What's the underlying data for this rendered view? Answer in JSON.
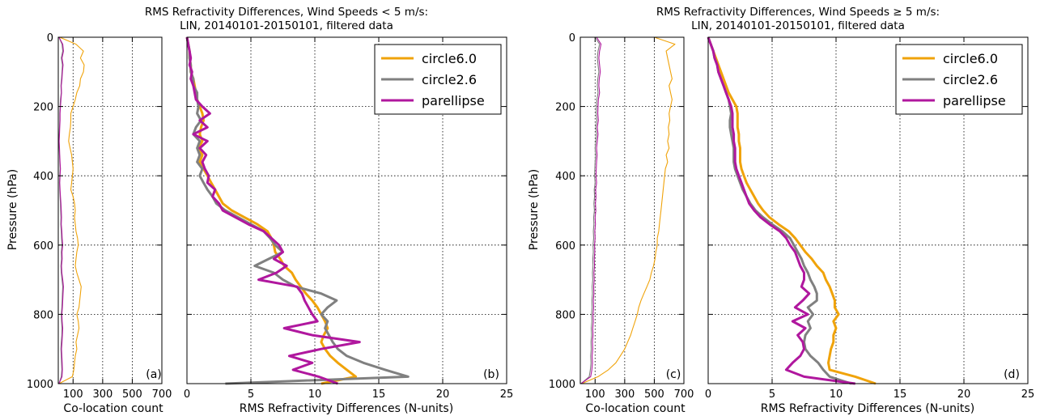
{
  "titles": [
    {
      "line1": "RMS Refractivity Differences, Wind Speeds < 5 m/s:",
      "line2": "LIN, 20140101-20150101, filtered data"
    },
    {
      "line1": "RMS Refractivity Differences, Wind Speeds ≥ 5 m/s:",
      "line2": "LIN, 20140101-20150101, filtered data"
    }
  ],
  "axis_labels": {
    "pressure": "Pressure (hPa)",
    "count": "Co-location count",
    "rms": "RMS Refractivity Differences (N-units)"
  },
  "panel_labels": [
    "(a)",
    "(b)",
    "(c)",
    "(d)"
  ],
  "colors": {
    "circle6.0": "#f0a30a",
    "circle2.6": "#808080",
    "parellipse": "#b0179e"
  },
  "chart_data": [
    {
      "id": "a",
      "type": "line",
      "xlabel": "Co-location count",
      "ylabel": "Pressure (hPa)",
      "xlim": [
        0,
        700
      ],
      "ylim": [
        1000,
        0
      ],
      "xticks": [
        100,
        300,
        500,
        700
      ],
      "yticks": [
        0,
        200,
        400,
        600,
        800,
        1000
      ],
      "y": [
        0,
        20,
        40,
        60,
        80,
        100,
        120,
        140,
        160,
        180,
        200,
        220,
        240,
        260,
        280,
        300,
        320,
        340,
        360,
        380,
        400,
        420,
        440,
        460,
        480,
        500,
        520,
        540,
        560,
        580,
        600,
        620,
        640,
        660,
        680,
        700,
        720,
        740,
        760,
        780,
        800,
        820,
        840,
        860,
        880,
        900,
        920,
        940,
        960,
        980,
        1000
      ],
      "series": [
        {
          "name": "circle6.0",
          "values": [
            10,
            120,
            170,
            150,
            175,
            170,
            150,
            145,
            125,
            115,
            100,
            85,
            85,
            82,
            75,
            70,
            80,
            90,
            95,
            100,
            95,
            90,
            85,
            100,
            110,
            115,
            110,
            115,
            120,
            130,
            135,
            125,
            120,
            115,
            125,
            140,
            155,
            150,
            145,
            140,
            125,
            135,
            140,
            130,
            120,
            125,
            115,
            110,
            105,
            95,
            5
          ]
        },
        {
          "name": "circle2.6",
          "values": [
            5,
            25,
            30,
            20,
            28,
            25,
            22,
            18,
            20,
            15,
            12,
            10,
            10,
            8,
            6,
            5,
            6,
            8,
            10,
            12,
            10,
            8,
            10,
            12,
            15,
            16,
            18,
            17,
            20,
            22,
            25,
            20,
            22,
            18,
            20,
            25,
            30,
            28,
            26,
            24,
            20,
            22,
            25,
            24,
            20,
            18,
            20,
            22,
            24,
            20,
            5
          ]
        },
        {
          "name": "parellipse",
          "values": [
            5,
            30,
            35,
            25,
            32,
            28,
            25,
            20,
            22,
            18,
            15,
            12,
            12,
            10,
            8,
            6,
            8,
            10,
            12,
            15,
            12,
            10,
            12,
            15,
            18,
            20,
            22,
            20,
            24,
            26,
            30,
            25,
            26,
            22,
            24,
            30,
            35,
            32,
            30,
            28,
            24,
            26,
            30,
            28,
            25,
            22,
            24,
            26,
            28,
            25,
            5
          ]
        }
      ]
    },
    {
      "id": "b",
      "type": "line",
      "xlabel": "RMS Refractivity Differences (N-units)",
      "xlim": [
        0,
        25
      ],
      "ylim": [
        1000,
        0
      ],
      "xticks": [
        0,
        5,
        10,
        15,
        20,
        25
      ],
      "yticks": [
        0,
        200,
        400,
        600,
        800,
        1000
      ],
      "legend": "top-right",
      "y": [
        0,
        20,
        40,
        60,
        80,
        100,
        120,
        140,
        160,
        180,
        200,
        220,
        240,
        260,
        280,
        300,
        320,
        340,
        360,
        380,
        400,
        420,
        440,
        460,
        480,
        500,
        520,
        540,
        560,
        580,
        600,
        620,
        640,
        660,
        680,
        700,
        720,
        740,
        760,
        780,
        800,
        820,
        840,
        860,
        880,
        900,
        920,
        940,
        960,
        980,
        1000
      ],
      "series": [
        {
          "name": "circle6.0",
          "values": [
            0,
            0.1,
            0.2,
            0.2,
            0.3,
            0.3,
            0.5,
            0.6,
            0.7,
            0.8,
            1.0,
            1.2,
            1.3,
            1.1,
            1.0,
            1.2,
            0.9,
            1.2,
            1.0,
            1.3,
            1.6,
            1.9,
            2.2,
            2.5,
            2.8,
            3.5,
            4.5,
            5.5,
            6.3,
            6.6,
            6.8,
            6.9,
            7.3,
            7.6,
            8.2,
            8.5,
            8.9,
            9.3,
            9.8,
            10.2,
            10.5,
            10.8,
            11.0,
            10.7,
            10.5,
            10.8,
            11.2,
            11.8,
            12.5,
            13.2,
            10.5
          ]
        },
        {
          "name": "circle2.6",
          "values": [
            0,
            0.1,
            0.2,
            0.2,
            0.3,
            0.3,
            0.5,
            0.5,
            0.8,
            0.8,
            0.9,
            0.8,
            1.1,
            0.7,
            0.5,
            1.0,
            0.8,
            1.0,
            0.8,
            1.2,
            1.0,
            1.3,
            1.6,
            2.0,
            2.3,
            3.0,
            4.0,
            5.0,
            6.0,
            6.5,
            6.9,
            7.5,
            6.4,
            5.3,
            6.8,
            7.5,
            8.5,
            10.5,
            11.7,
            11.0,
            10.5,
            11.0,
            10.8,
            11.1,
            11.4,
            11.8,
            12.5,
            13.8,
            15.5,
            17.3,
            3.0
          ]
        },
        {
          "name": "parellipse",
          "values": [
            0,
            0.1,
            0.2,
            0.3,
            0.2,
            0.4,
            0.3,
            0.5,
            0.6,
            0.7,
            1.2,
            1.8,
            1.0,
            1.6,
            0.5,
            1.6,
            1.0,
            1.5,
            1.2,
            1.4,
            1.7,
            1.6,
            2.2,
            2.0,
            2.5,
            2.8,
            3.8,
            4.8,
            6.0,
            6.6,
            7.2,
            7.5,
            6.8,
            7.8,
            7.0,
            5.6,
            8.6,
            9.0,
            9.2,
            9.5,
            9.8,
            10.2,
            7.6,
            9.8,
            13.5,
            10.5,
            8.0,
            9.8,
            8.3,
            10.3,
            11.8
          ]
        }
      ]
    },
    {
      "id": "c",
      "type": "line",
      "xlabel": "Co-location count",
      "ylabel": "Pressure (hPa)",
      "xlim": [
        0,
        700
      ],
      "ylim": [
        1000,
        0
      ],
      "xticks": [
        100,
        300,
        500,
        700
      ],
      "yticks": [
        0,
        200,
        400,
        600,
        800,
        1000
      ],
      "y": [
        0,
        20,
        40,
        60,
        80,
        100,
        120,
        140,
        160,
        180,
        200,
        220,
        240,
        260,
        280,
        300,
        320,
        340,
        360,
        380,
        400,
        420,
        440,
        460,
        480,
        500,
        520,
        540,
        560,
        580,
        600,
        620,
        640,
        660,
        680,
        700,
        720,
        740,
        760,
        780,
        800,
        820,
        840,
        860,
        880,
        900,
        920,
        940,
        960,
        980,
        1000
      ],
      "series": [
        {
          "name": "circle6.0",
          "values": [
            500,
            640,
            580,
            590,
            600,
            610,
            620,
            600,
            610,
            620,
            610,
            600,
            605,
            595,
            600,
            590,
            600,
            580,
            590,
            575,
            570,
            565,
            560,
            555,
            550,
            545,
            540,
            535,
            530,
            520,
            520,
            510,
            505,
            495,
            480,
            470,
            450,
            430,
            410,
            395,
            385,
            370,
            355,
            340,
            320,
            300,
            270,
            240,
            190,
            120,
            10
          ]
        },
        {
          "name": "circle2.6",
          "values": [
            100,
            130,
            120,
            115,
            120,
            125,
            118,
            115,
            120,
            112,
            110,
            108,
            112,
            105,
            110,
            105,
            100,
            104,
            100,
            98,
            96,
            100,
            94,
            96,
            92,
            95,
            90,
            92,
            88,
            90,
            86,
            88,
            84,
            86,
            82,
            84,
            80,
            82,
            78,
            80,
            76,
            78,
            74,
            76,
            72,
            74,
            70,
            72,
            68,
            60,
            5
          ]
        },
        {
          "name": "parellipse",
          "values": [
            110,
            140,
            130,
            125,
            130,
            135,
            128,
            125,
            130,
            122,
            120,
            118,
            122,
            115,
            120,
            115,
            110,
            114,
            110,
            108,
            106,
            110,
            104,
            106,
            102,
            105,
            100,
            102,
            98,
            100,
            96,
            98,
            94,
            96,
            92,
            94,
            90,
            92,
            88,
            90,
            86,
            88,
            84,
            86,
            82,
            84,
            80,
            82,
            78,
            70,
            5
          ]
        }
      ]
    },
    {
      "id": "d",
      "type": "line",
      "xlabel": "RMS Refractivity Differences (N-units)",
      "xlim": [
        0,
        25
      ],
      "ylim": [
        1000,
        0
      ],
      "xticks": [
        0,
        5,
        10,
        15,
        20,
        25
      ],
      "yticks": [
        0,
        200,
        400,
        600,
        800,
        1000
      ],
      "legend": "top-right",
      "y": [
        0,
        20,
        40,
        60,
        80,
        100,
        120,
        140,
        160,
        180,
        200,
        220,
        240,
        260,
        280,
        300,
        320,
        340,
        360,
        380,
        400,
        420,
        440,
        460,
        480,
        500,
        520,
        540,
        560,
        580,
        600,
        620,
        640,
        660,
        680,
        700,
        720,
        740,
        760,
        780,
        800,
        820,
        840,
        860,
        880,
        900,
        920,
        940,
        960,
        980,
        1000
      ],
      "series": [
        {
          "name": "circle6.0",
          "values": [
            0,
            0.2,
            0.4,
            0.6,
            0.8,
            1.0,
            1.2,
            1.4,
            1.6,
            1.9,
            2.2,
            2.3,
            2.3,
            2.3,
            2.4,
            2.4,
            2.5,
            2.5,
            2.5,
            2.6,
            2.8,
            3.0,
            3.3,
            3.6,
            3.9,
            4.3,
            4.8,
            5.5,
            6.3,
            6.8,
            7.2,
            7.6,
            8.1,
            8.5,
            9.0,
            9.2,
            9.5,
            9.7,
            9.9,
            9.9,
            10.2,
            9.8,
            10.0,
            9.8,
            9.8,
            9.6,
            9.5,
            9.4,
            9.5,
            11.5,
            13.1
          ]
        },
        {
          "name": "circle2.6",
          "values": [
            0,
            0.2,
            0.4,
            0.5,
            0.7,
            0.8,
            1.0,
            1.2,
            1.4,
            1.6,
            1.7,
            1.8,
            1.7,
            1.7,
            1.8,
            1.9,
            2.0,
            2.0,
            2.0,
            2.1,
            2.3,
            2.5,
            2.7,
            3.0,
            3.3,
            3.7,
            4.3,
            5.0,
            5.8,
            6.4,
            6.7,
            7.0,
            7.3,
            7.5,
            7.8,
            8.0,
            8.3,
            8.5,
            8.5,
            7.8,
            8.2,
            7.8,
            8.0,
            7.6,
            7.5,
            7.6,
            8.0,
            8.6,
            9.0,
            9.5,
            11.2
          ]
        },
        {
          "name": "parellipse",
          "values": [
            0,
            0.2,
            0.4,
            0.5,
            0.7,
            0.8,
            1.0,
            1.2,
            1.4,
            1.6,
            1.8,
            1.9,
            1.9,
            1.9,
            2.0,
            2.0,
            2.1,
            2.1,
            2.1,
            2.2,
            2.4,
            2.6,
            2.8,
            3.0,
            3.2,
            3.6,
            4.1,
            4.8,
            5.6,
            6.1,
            6.4,
            6.8,
            7.0,
            7.2,
            7.5,
            7.5,
            7.3,
            7.9,
            7.4,
            6.8,
            7.8,
            6.6,
            7.6,
            7.0,
            7.4,
            7.5,
            7.2,
            6.6,
            6.1,
            7.5,
            11.5
          ]
        }
      ]
    }
  ]
}
